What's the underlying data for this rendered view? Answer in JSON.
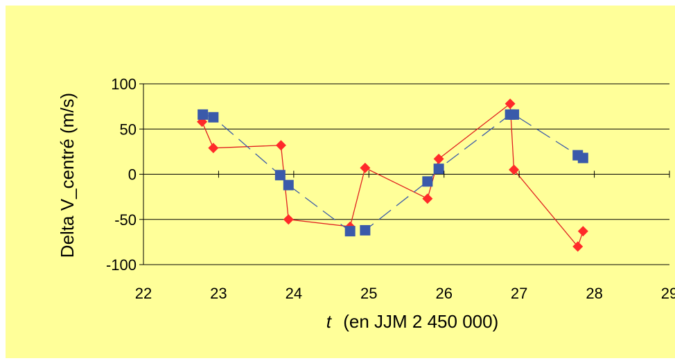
{
  "chart_data": {
    "type": "scatter",
    "xlabel_italic": "t",
    "xlabel_rest": "(en JJM 2 450 000)",
    "ylabel": "Delta V_centré (m/s)",
    "xlim": [
      22,
      29
    ],
    "ylim": [
      -100,
      100
    ],
    "x_ticks": [
      "22",
      "23",
      "24",
      "25",
      "26",
      "27",
      "28",
      "29"
    ],
    "y_ticks": [
      "100",
      "50",
      "0",
      "-50",
      "-100"
    ],
    "grid": true,
    "series": [
      {
        "marker": "diamond",
        "color": "#ff2a2a",
        "line_color": "#e02020",
        "line_style": "solid",
        "x": [
          22.78,
          22.93,
          23.83,
          23.93,
          24.75,
          24.95,
          25.78,
          25.93,
          26.88,
          26.93,
          27.78,
          27.85
        ],
        "y": [
          58,
          29,
          32,
          -50,
          -58,
          7,
          -27,
          17,
          78,
          5,
          -80,
          -63
        ]
      },
      {
        "marker": "square",
        "color": "#3a5aaa",
        "line_color": "#3a5aaa",
        "line_style": "dashed",
        "x": [
          22.79,
          22.93,
          23.82,
          23.93,
          24.75,
          24.95,
          25.78,
          25.93,
          26.88,
          26.93,
          27.78,
          27.85
        ],
        "y": [
          66,
          63,
          -1,
          -12,
          -63,
          -62,
          -8,
          6,
          66,
          66,
          21,
          18
        ]
      }
    ]
  }
}
